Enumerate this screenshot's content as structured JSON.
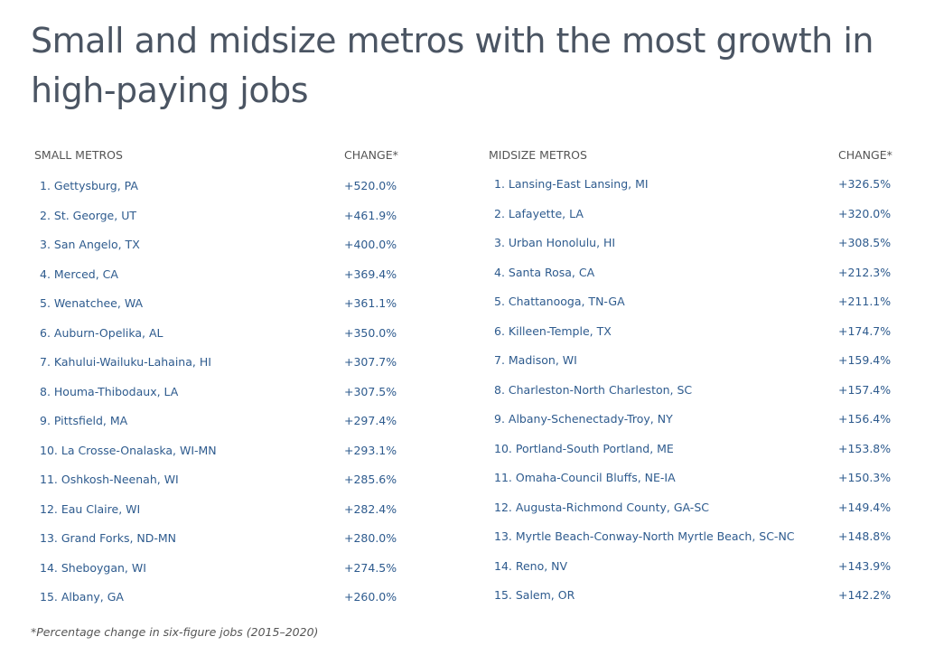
{
  "title": "Small and midsize metros with the most growth in high-paying jobs",
  "small": {
    "header": "SMALL METROS",
    "change_header": "CHANGE*",
    "rows": [
      {
        "name": "1. Gettysburg, PA",
        "change": "+520.0%"
      },
      {
        "name": "2. St. George, UT",
        "change": "+461.9%"
      },
      {
        "name": "3. San Angelo, TX",
        "change": "+400.0%"
      },
      {
        "name": "4. Merced, CA",
        "change": "+369.4%"
      },
      {
        "name": "5. Wenatchee, WA",
        "change": "+361.1%"
      },
      {
        "name": "6. Auburn-Opelika, AL",
        "change": "+350.0%"
      },
      {
        "name": "7. Kahului-Wailuku-Lahaina, HI",
        "change": "+307.7%"
      },
      {
        "name": "8. Houma-Thibodaux, LA",
        "change": "+307.5%"
      },
      {
        "name": "9. Pittsfield, MA",
        "change": "+297.4%"
      },
      {
        "name": "10. La Crosse-Onalaska, WI-MN",
        "change": "+293.1%"
      },
      {
        "name": "11. Oshkosh-Neenah, WI",
        "change": "+285.6%"
      },
      {
        "name": "12. Eau Claire, WI",
        "change": "+282.4%"
      },
      {
        "name": "13. Grand Forks, ND-MN",
        "change": "+280.0%"
      },
      {
        "name": "14. Sheboygan, WI",
        "change": "+274.5%"
      },
      {
        "name": "15. Albany, GA",
        "change": "+260.0%"
      }
    ]
  },
  "midsize": {
    "header": "MIDSIZE METROS",
    "change_header": "CHANGE*",
    "rows": [
      {
        "name": "1. Lansing-East Lansing, MI",
        "change": "+326.5%"
      },
      {
        "name": "2. Lafayette, LA",
        "change": "+320.0%"
      },
      {
        "name": "3. Urban Honolulu, HI",
        "change": "+308.5%"
      },
      {
        "name": "4. Santa Rosa, CA",
        "change": "+212.3%"
      },
      {
        "name": "5. Chattanooga, TN-GA",
        "change": "+211.1%"
      },
      {
        "name": "6. Killeen-Temple, TX",
        "change": "+174.7%"
      },
      {
        "name": "7. Madison, WI",
        "change": "+159.4%"
      },
      {
        "name": "8. Charleston-North Charleston, SC",
        "change": "+157.4%"
      },
      {
        "name": "9. Albany-Schenectady-Troy, NY",
        "change": "+156.4%"
      },
      {
        "name": "10. Portland-South Portland, ME",
        "change": "+153.8%"
      },
      {
        "name": "11. Omaha-Council Bluffs, NE-IA",
        "change": "+150.3%"
      },
      {
        "name": "12. Augusta-Richmond County, GA-SC",
        "change": "+149.4%"
      },
      {
        "name": "13. Myrtle Beach-Conway-North Myrtle Beach, SC-NC",
        "change": "+148.8%"
      },
      {
        "name": "14. Reno, NV",
        "change": "+143.9%"
      },
      {
        "name": "15. Salem, OR",
        "change": "+142.2%"
      }
    ]
  },
  "footnote": "*Percentage change in six-figure jobs (2015–2020)",
  "colors": {
    "title": "#4b5563",
    "header": "#555555",
    "row_text": "#2e5b8e"
  }
}
